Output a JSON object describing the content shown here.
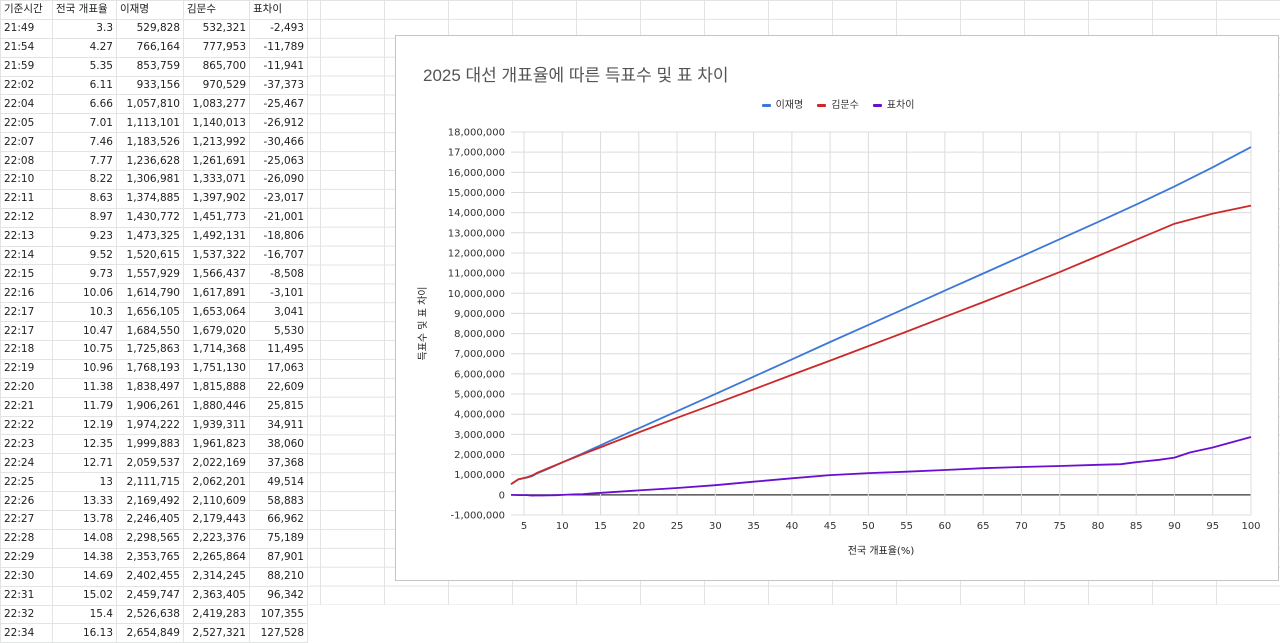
{
  "table": {
    "headers": [
      "기준시간",
      "전국 개표율",
      "이재명",
      "김문수",
      "표차이"
    ],
    "rows": [
      [
        "21:49",
        "3.3",
        "529,828",
        "532,321",
        "-2,493"
      ],
      [
        "21:54",
        "4.27",
        "766,164",
        "777,953",
        "-11,789"
      ],
      [
        "21:59",
        "5.35",
        "853,759",
        "865,700",
        "-11,941"
      ],
      [
        "22:02",
        "6.11",
        "933,156",
        "970,529",
        "-37,373"
      ],
      [
        "22:04",
        "6.66",
        "1,057,810",
        "1,083,277",
        "-25,467"
      ],
      [
        "22:05",
        "7.01",
        "1,113,101",
        "1,140,013",
        "-26,912"
      ],
      [
        "22:07",
        "7.46",
        "1,183,526",
        "1,213,992",
        "-30,466"
      ],
      [
        "22:08",
        "7.77",
        "1,236,628",
        "1,261,691",
        "-25,063"
      ],
      [
        "22:10",
        "8.22",
        "1,306,981",
        "1,333,071",
        "-26,090"
      ],
      [
        "22:11",
        "8.63",
        "1,374,885",
        "1,397,902",
        "-23,017"
      ],
      [
        "22:12",
        "8.97",
        "1,430,772",
        "1,451,773",
        "-21,001"
      ],
      [
        "22:13",
        "9.23",
        "1,473,325",
        "1,492,131",
        "-18,806"
      ],
      [
        "22:14",
        "9.52",
        "1,520,615",
        "1,537,322",
        "-16,707"
      ],
      [
        "22:15",
        "9.73",
        "1,557,929",
        "1,566,437",
        "-8,508"
      ],
      [
        "22:16",
        "10.06",
        "1,614,790",
        "1,617,891",
        "-3,101"
      ],
      [
        "22:17",
        "10.3",
        "1,656,105",
        "1,653,064",
        "3,041"
      ],
      [
        "22:17",
        "10.47",
        "1,684,550",
        "1,679,020",
        "5,530"
      ],
      [
        "22:18",
        "10.75",
        "1,725,863",
        "1,714,368",
        "11,495"
      ],
      [
        "22:19",
        "10.96",
        "1,768,193",
        "1,751,130",
        "17,063"
      ],
      [
        "22:20",
        "11.38",
        "1,838,497",
        "1,815,888",
        "22,609"
      ],
      [
        "22:21",
        "11.79",
        "1,906,261",
        "1,880,446",
        "25,815"
      ],
      [
        "22:22",
        "12.19",
        "1,974,222",
        "1,939,311",
        "34,911"
      ],
      [
        "22:23",
        "12.35",
        "1,999,883",
        "1,961,823",
        "38,060"
      ],
      [
        "22:24",
        "12.71",
        "2,059,537",
        "2,022,169",
        "37,368"
      ],
      [
        "22:25",
        "13",
        "2,111,715",
        "2,062,201",
        "49,514"
      ],
      [
        "22:26",
        "13.33",
        "2,169,492",
        "2,110,609",
        "58,883"
      ],
      [
        "22:27",
        "13.78",
        "2,246,405",
        "2,179,443",
        "66,962"
      ],
      [
        "22:28",
        "14.08",
        "2,298,565",
        "2,223,376",
        "75,189"
      ],
      [
        "22:29",
        "14.38",
        "2,353,765",
        "2,265,864",
        "87,901"
      ],
      [
        "22:30",
        "14.69",
        "2,402,455",
        "2,314,245",
        "88,210"
      ],
      [
        "22:31",
        "15.02",
        "2,459,747",
        "2,363,405",
        "96,342"
      ],
      [
        "22:32",
        "15.4",
        "2,526,638",
        "2,419,283",
        "107,355"
      ],
      [
        "22:34",
        "16.13",
        "2,654,849",
        "2,527,321",
        "127,528"
      ]
    ]
  },
  "chart_data": {
    "type": "line",
    "title": "2025 대선 개표율에 따른 득표수 및 표 차이",
    "xlabel": "전국 개표율(%)",
    "ylabel": "득표수 및 표 차이",
    "xlim": [
      3.3,
      100
    ],
    "ylim": [
      -1000000,
      18000000
    ],
    "xticks": [
      5,
      10,
      15,
      20,
      25,
      30,
      35,
      40,
      45,
      50,
      55,
      60,
      65,
      70,
      75,
      80,
      85,
      90,
      95,
      100
    ],
    "yticks": [
      -1000000,
      0,
      1000000,
      2000000,
      3000000,
      4000000,
      5000000,
      6000000,
      7000000,
      8000000,
      9000000,
      10000000,
      11000000,
      12000000,
      13000000,
      14000000,
      15000000,
      16000000,
      17000000,
      18000000
    ],
    "ytick_labels": [
      "-1,000,000",
      "0",
      "1,000,000",
      "2,000,000",
      "3,000,000",
      "4,000,000",
      "5,000,000",
      "6,000,000",
      "7,000,000",
      "8,000,000",
      "9,000,000",
      "10,000,000",
      "11,000,000",
      "12,000,000",
      "13,000,000",
      "14,000,000",
      "15,000,000",
      "16,000,000",
      "17,000,000",
      "18,000,000"
    ],
    "legend_position": "top",
    "grid": true,
    "series": [
      {
        "name": "이재명",
        "color": "#3c78d8",
        "x": [
          3.3,
          4.27,
          5.35,
          6.11,
          6.66,
          7.46,
          8.22,
          9.23,
          10.06,
          11.38,
          12.71,
          14.08,
          15.4,
          16.13,
          20,
          25,
          30,
          35,
          40,
          45,
          50,
          55,
          60,
          65,
          70,
          75,
          80,
          85,
          90,
          95,
          100
        ],
        "y": [
          529828,
          766164,
          853759,
          933156,
          1057810,
          1183526,
          1306981,
          1473325,
          1614790,
          1838497,
          2059537,
          2298565,
          2526638,
          2654849,
          3300000,
          4150000,
          5000000,
          5860000,
          6720000,
          7580000,
          8430000,
          9280000,
          10130000,
          10980000,
          11830000,
          12680000,
          13530000,
          14400000,
          15300000,
          16250000,
          17250000
        ]
      },
      {
        "name": "김문수",
        "color": "#cc2a2a",
        "x": [
          3.3,
          4.27,
          5.35,
          6.11,
          6.66,
          7.46,
          8.22,
          9.23,
          10.06,
          11.38,
          12.71,
          14.08,
          15.4,
          16.13,
          20,
          25,
          30,
          35,
          40,
          45,
          50,
          55,
          60,
          65,
          70,
          75,
          80,
          85,
          90,
          95,
          100
        ],
        "y": [
          532321,
          777953,
          865700,
          970529,
          1083277,
          1213992,
          1333071,
          1492131,
          1617891,
          1815888,
          2022169,
          2223376,
          2419283,
          2527321,
          3100000,
          3820000,
          4520000,
          5230000,
          5950000,
          6660000,
          7380000,
          8100000,
          8830000,
          9560000,
          10300000,
          11050000,
          11850000,
          12650000,
          13450000,
          13950000,
          14350000
        ]
      },
      {
        "name": "표차이",
        "color": "#6a0fd0",
        "x": [
          3.3,
          4.27,
          5.35,
          6.11,
          6.66,
          7.46,
          8.22,
          9.23,
          10.06,
          11.38,
          12.71,
          14.08,
          15.4,
          16.13,
          20,
          25,
          30,
          35,
          40,
          45,
          50,
          55,
          60,
          65,
          70,
          75,
          80,
          83,
          85,
          88,
          90,
          92,
          95,
          100
        ],
        "y": [
          -2493,
          -11789,
          -11941,
          -37373,
          -25467,
          -30466,
          -26090,
          -18806,
          -3101,
          22609,
          37368,
          75189,
          107355,
          127528,
          220000,
          340000,
          480000,
          650000,
          820000,
          980000,
          1080000,
          1150000,
          1230000,
          1320000,
          1380000,
          1430000,
          1490000,
          1520000,
          1620000,
          1740000,
          1850000,
          2100000,
          2350000,
          2870000
        ]
      }
    ]
  }
}
